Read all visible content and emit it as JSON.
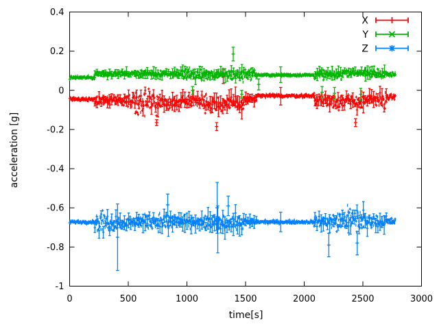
{
  "chart_data": {
    "type": "scatter",
    "title": "",
    "xlabel": "time[s]",
    "ylabel": "acceleration [g]",
    "xlim": [
      0,
      3000
    ],
    "ylim": [
      -1,
      0.4
    ],
    "xticks": [
      0,
      500,
      1000,
      1500,
      2000,
      2500,
      3000
    ],
    "yticks": [
      0.4,
      0.2,
      0,
      -0.2,
      -0.4,
      -0.6,
      -0.8,
      -1
    ],
    "grid": false,
    "background": "#ffffff",
    "axis_color": "#000000",
    "legend_position": "top-right-inside",
    "style": "points-with-errorbars",
    "series": [
      {
        "name": "X",
        "color": "#ff0000",
        "marker": "+",
        "segments": [
          {
            "t": [
              0,
              215
            ],
            "mean": -0.045,
            "noise": 0.006,
            "ebar": 0
          },
          {
            "t": [
              215,
              560
            ],
            "mean": -0.05,
            "noise": 0.03,
            "ebar": 0.03
          },
          {
            "t": [
              560,
              950
            ],
            "mean": -0.065,
            "noise": 0.045,
            "ebar": 0.04
          },
          {
            "t": [
              950,
              1150
            ],
            "mean": -0.05,
            "noise": 0.035,
            "ebar": 0.035
          },
          {
            "t": [
              1150,
              1480
            ],
            "mean": -0.07,
            "noise": 0.055,
            "ebar": 0.045
          },
          {
            "t": [
              1480,
              1595
            ],
            "mean": -0.045,
            "noise": 0.025,
            "ebar": 0.03
          },
          {
            "t": [
              1595,
              2085
            ],
            "mean": -0.028,
            "noise": 0.006,
            "ebar": 0
          },
          {
            "t": [
              2085,
              2330
            ],
            "mean": -0.05,
            "noise": 0.04,
            "ebar": 0.04
          },
          {
            "t": [
              2330,
              2520
            ],
            "mean": -0.06,
            "noise": 0.05,
            "ebar": 0.045
          },
          {
            "t": [
              2520,
              2700
            ],
            "mean": -0.05,
            "noise": 0.035,
            "ebar": 0.04
          },
          {
            "t": [
              2700,
              2780
            ],
            "mean": -0.035,
            "noise": 0.01,
            "ebar": 0
          }
        ],
        "outliers": [
          [
            1310,
            0.07,
            0.035
          ],
          [
            1800,
            -0.03,
            0.045
          ],
          [
            1253,
            -0.185,
            0.02
          ],
          [
            742,
            -0.165,
            0.015
          ],
          [
            2438,
            -0.165,
            0.02
          ]
        ]
      },
      {
        "name": "Y",
        "color": "#00b400",
        "marker": "x",
        "segments": [
          {
            "t": [
              0,
              215
            ],
            "mean": 0.065,
            "noise": 0.006,
            "ebar": 0
          },
          {
            "t": [
              215,
              560
            ],
            "mean": 0.085,
            "noise": 0.02,
            "ebar": 0.02
          },
          {
            "t": [
              560,
              950
            ],
            "mean": 0.085,
            "noise": 0.025,
            "ebar": 0.025
          },
          {
            "t": [
              950,
              1480
            ],
            "mean": 0.08,
            "noise": 0.03,
            "ebar": 0.03
          },
          {
            "t": [
              1480,
              1595
            ],
            "mean": 0.085,
            "noise": 0.02,
            "ebar": 0.02
          },
          {
            "t": [
              1595,
              2085
            ],
            "mean": 0.078,
            "noise": 0.005,
            "ebar": 0
          },
          {
            "t": [
              2085,
              2330
            ],
            "mean": 0.08,
            "noise": 0.035,
            "ebar": 0.03
          },
          {
            "t": [
              2330,
              2520
            ],
            "mean": 0.09,
            "noise": 0.03,
            "ebar": 0.025
          },
          {
            "t": [
              2520,
              2700
            ],
            "mean": 0.085,
            "noise": 0.035,
            "ebar": 0.03
          },
          {
            "t": [
              2700,
              2780
            ],
            "mean": 0.08,
            "noise": 0.009,
            "ebar": 0
          }
        ],
        "outliers": [
          [
            1395,
            0.185,
            0.035
          ],
          [
            1800,
            0.08,
            0.04
          ],
          [
            1612,
            0.03,
            0.028
          ],
          [
            1468,
            -0.02,
            0.02
          ],
          [
            1048,
            0.0,
            0.02
          ],
          [
            2152,
            -0.01,
            0.03
          ],
          [
            2258,
            -0.015,
            0.03
          ],
          [
            2482,
            -0.02,
            0.03
          ]
        ]
      },
      {
        "name": "Z",
        "color": "#0080ff",
        "marker": "*",
        "segments": [
          {
            "t": [
              0,
              215
            ],
            "mean": -0.672,
            "noise": 0.006,
            "ebar": 0
          },
          {
            "t": [
              215,
              560
            ],
            "mean": -0.675,
            "noise": 0.035,
            "ebar": 0.035
          },
          {
            "t": [
              560,
              950
            ],
            "mean": -0.67,
            "noise": 0.05,
            "ebar": 0.04
          },
          {
            "t": [
              950,
              1150
            ],
            "mean": -0.675,
            "noise": 0.04,
            "ebar": 0.04
          },
          {
            "t": [
              1150,
              1480
            ],
            "mean": -0.675,
            "noise": 0.055,
            "ebar": 0.05
          },
          {
            "t": [
              1480,
              1595
            ],
            "mean": -0.672,
            "noise": 0.03,
            "ebar": 0.03
          },
          {
            "t": [
              1595,
              2085
            ],
            "mean": -0.672,
            "noise": 0.006,
            "ebar": 0
          },
          {
            "t": [
              2085,
              2330
            ],
            "mean": -0.67,
            "noise": 0.045,
            "ebar": 0.04
          },
          {
            "t": [
              2330,
              2520
            ],
            "mean": -0.665,
            "noise": 0.05,
            "ebar": 0.045
          },
          {
            "t": [
              2520,
              2700
            ],
            "mean": -0.67,
            "noise": 0.04,
            "ebar": 0.04
          },
          {
            "t": [
              2700,
              2780
            ],
            "mean": -0.67,
            "noise": 0.012,
            "ebar": 0
          }
        ],
        "outliers": [
          [
            409,
            -0.75,
            0.17
          ],
          [
            1258,
            -0.6,
            0.13
          ],
          [
            1263,
            -0.71,
            0.12
          ],
          [
            836,
            -0.585,
            0.055
          ],
          [
            1352,
            -0.59,
            0.05
          ],
          [
            1800,
            -0.672,
            0.05
          ],
          [
            2210,
            -0.79,
            0.06
          ],
          [
            2452,
            -0.78,
            0.06
          ]
        ]
      }
    ]
  }
}
